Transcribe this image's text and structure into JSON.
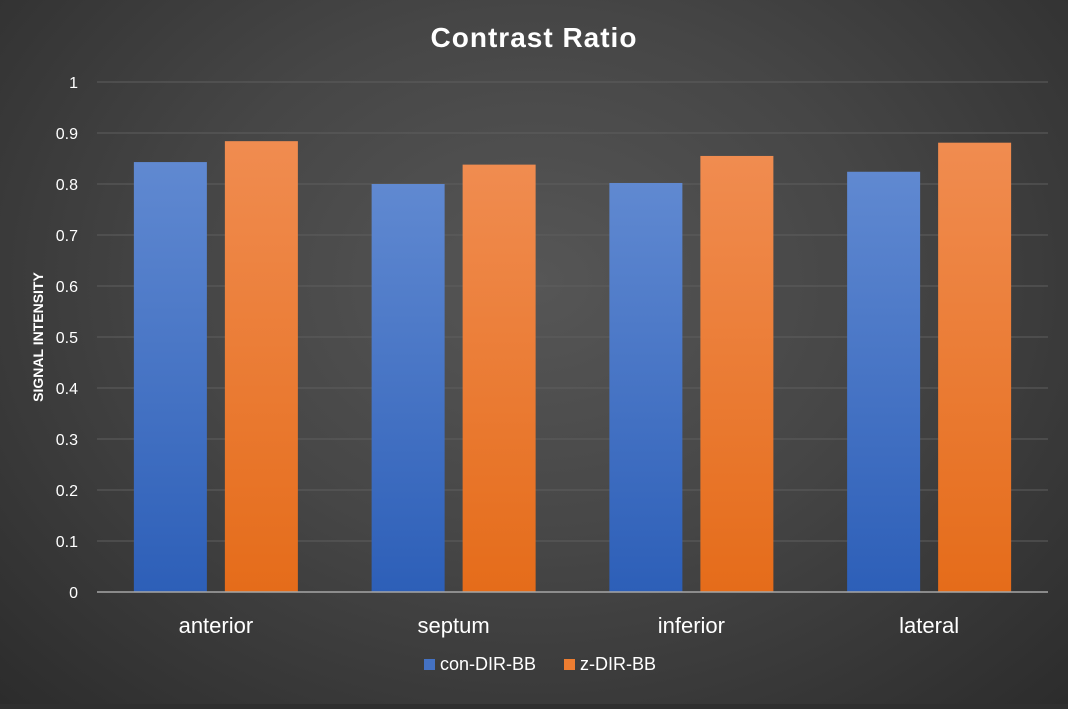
{
  "chart_data": {
    "type": "bar",
    "title": "Contrast Ratio",
    "xlabel": "",
    "ylabel": "SIGNAL INTENSITY",
    "ylim": [
      0,
      1
    ],
    "yticks": [
      "0",
      "0.1",
      "0.2",
      "0.3",
      "0.4",
      "0.5",
      "0.6",
      "0.7",
      "0.8",
      "0.9",
      "1"
    ],
    "categories": [
      "anterior",
      "septum",
      "inferior",
      "lateral"
    ],
    "series": [
      {
        "name": "con-DIR-BB",
        "values": [
          0.843,
          0.8,
          0.802,
          0.824
        ],
        "color": "#4472c4"
      },
      {
        "name": "z-DIR-BB",
        "values": [
          0.884,
          0.838,
          0.855,
          0.881
        ],
        "color": "#ed7d31"
      }
    ],
    "grid": true,
    "legend_position": "bottom"
  }
}
